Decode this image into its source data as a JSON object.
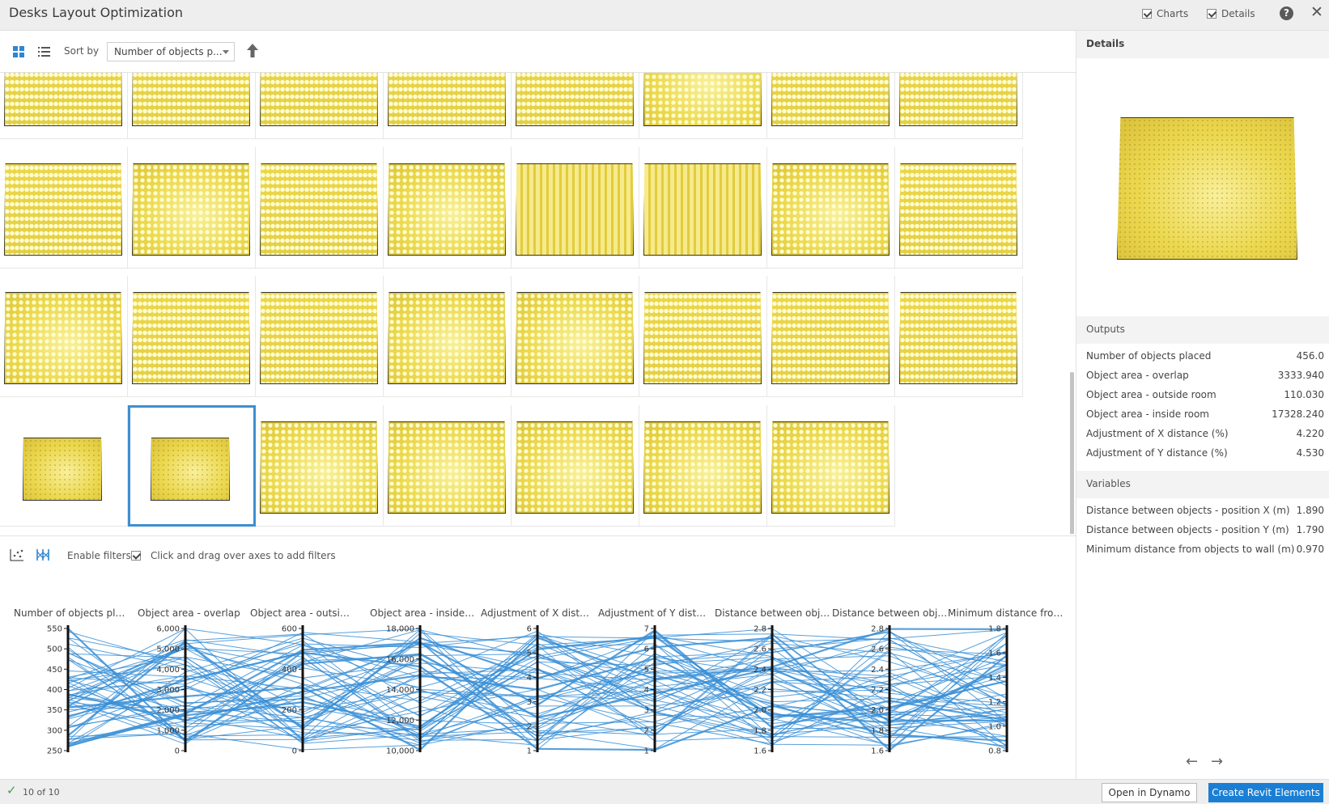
{
  "window": {
    "title": "Desks Layout Optimization",
    "charts_label": "Charts",
    "details_label": "Details",
    "charts_checked": true,
    "details_checked": true,
    "help_label": "?",
    "close_label": "✕"
  },
  "toolbar": {
    "sort_label": "Sort by",
    "sort_value": "Number of objects p...",
    "grid_view_icon": "grid-view-icon",
    "list_view_icon": "list-view-icon",
    "sort_direction_icon": "arrow-up-icon"
  },
  "filters": {
    "enable_label": "Enable filters",
    "enabled": true,
    "hint": "Click and drag over axes to add filters",
    "scatter_icon": "scatter-plot-icon",
    "parallel_icon": "parallel-coordinates-icon"
  },
  "parallel_axes": [
    {
      "title": "Number of objects pla...",
      "ticks": [
        "550",
        "500",
        "450",
        "400",
        "350",
        "300",
        "250"
      ]
    },
    {
      "title": "Object area - overlap",
      "ticks": [
        "6,000",
        "5,000",
        "4,000",
        "3,000",
        "2,000",
        "1,000",
        "0"
      ]
    },
    {
      "title": "Object area - outside ...",
      "ticks": [
        "600",
        "400",
        "200",
        "0"
      ]
    },
    {
      "title": "Object area - inside r...",
      "ticks": [
        "18,000",
        "16,000",
        "14,000",
        "12,000",
        "10,000"
      ]
    },
    {
      "title": "Adjustment of X distan...",
      "ticks": [
        "6",
        "5",
        "4",
        "3",
        "2",
        "1"
      ]
    },
    {
      "title": "Adjustment of Y distan...",
      "ticks": [
        "7",
        "6",
        "5",
        "4",
        "3",
        "2",
        "1"
      ]
    },
    {
      "title": "Distance between objec...",
      "ticks": [
        "2.8",
        "2.6",
        "2.4",
        "2.2",
        "2.0",
        "1.8",
        "1.6"
      ]
    },
    {
      "title": "Distance between objec...",
      "ticks": [
        "2.8",
        "2.6",
        "2.4",
        "2.2",
        "2.0",
        "1.8",
        "1.6"
      ]
    },
    {
      "title": "Minimum distance from ...",
      "ticks": [
        "1.8",
        "1.6",
        "1.4",
        "1.2",
        "1.0",
        "0.8"
      ]
    }
  ],
  "details": {
    "title": "Details",
    "outputs_label": "Outputs",
    "outputs": [
      {
        "label": "Number of objects placed",
        "value": "456.0"
      },
      {
        "label": "Object area - overlap",
        "value": "3333.940"
      },
      {
        "label": "Object area - outside room",
        "value": "110.030"
      },
      {
        "label": "Object area - inside room",
        "value": "17328.240"
      },
      {
        "label": "Adjustment of X distance (%)",
        "value": "4.220"
      },
      {
        "label": "Adjustment of Y distance (%)",
        "value": "4.530"
      }
    ],
    "variables_label": "Variables",
    "variables": [
      {
        "label": "Distance between objects - position X (m)",
        "value": "1.890"
      },
      {
        "label": "Distance between objects - position Y (m)",
        "value": "1.790"
      },
      {
        "label": "Minimum distance from objects to wall (m)",
        "value": "0.970"
      }
    ],
    "prev_icon": "arrow-left-icon",
    "next_icon": "arrow-right-icon"
  },
  "status": {
    "text": "10 of 10",
    "check_icon": "check-icon"
  },
  "actions": {
    "open_dynamo": "Open in Dynamo",
    "create_revit": "Create Revit Elements"
  },
  "colors": {
    "accent": "#1a7fd4",
    "selection": "#3d8fd1",
    "plot_line": "#3a8fd6",
    "thumb_yellow": "#ecd64a"
  }
}
